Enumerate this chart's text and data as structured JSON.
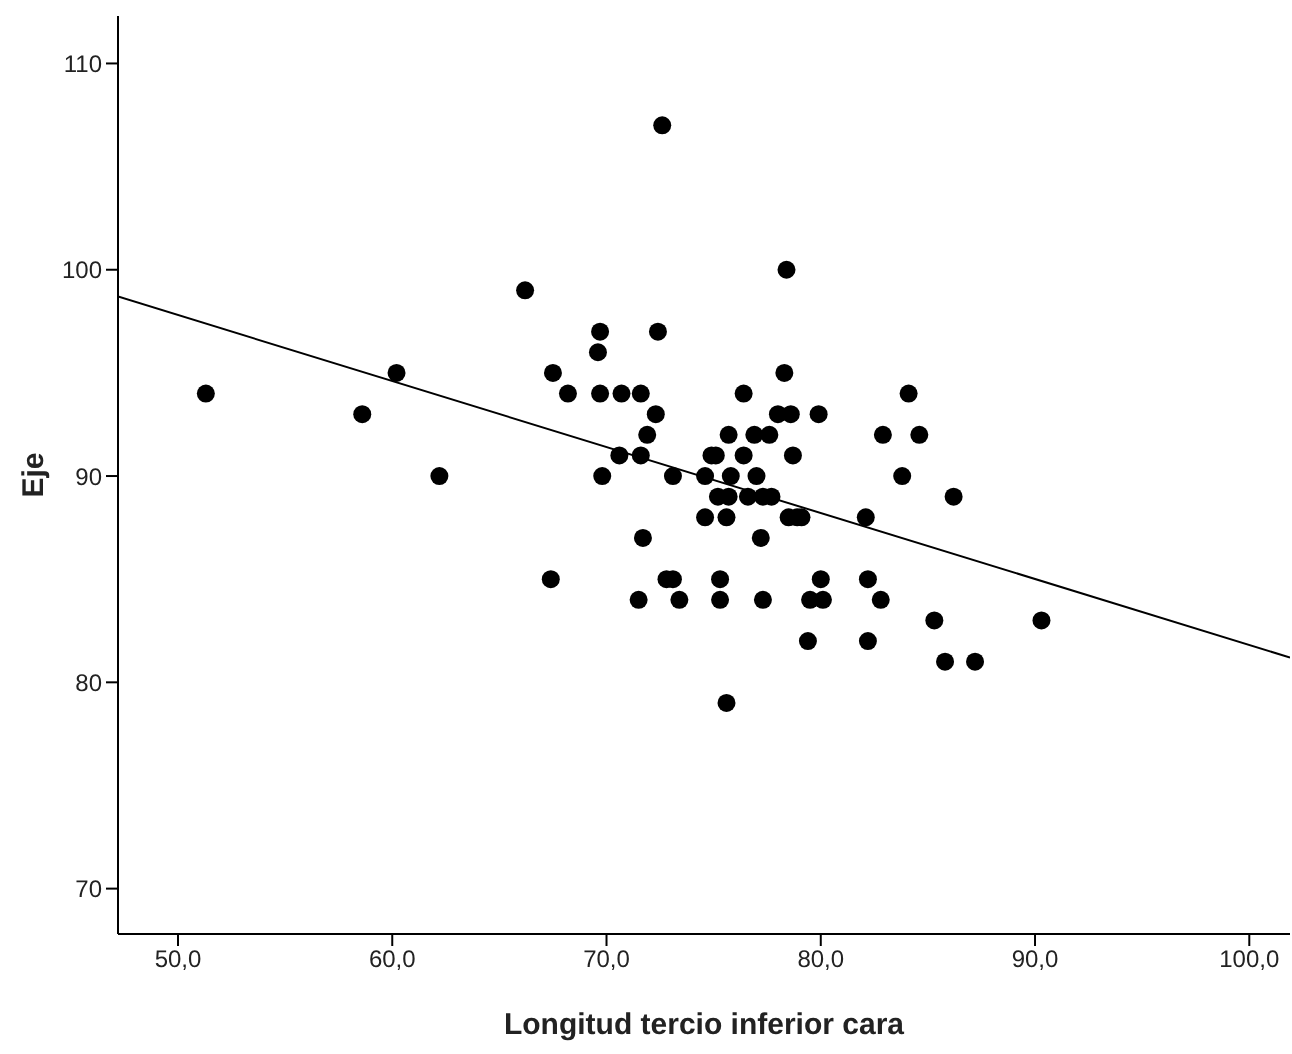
{
  "chart_data": {
    "type": "scatter",
    "xlabel": "Longitud tercio inferior cara",
    "ylabel": "Eje",
    "xlim": [
      47.2,
      101.9
    ],
    "ylim": [
      67.8,
      112.3
    ],
    "xticks": [
      {
        "value": 50,
        "label": "50,0"
      },
      {
        "value": 60,
        "label": "60,0"
      },
      {
        "value": 70,
        "label": "70,0"
      },
      {
        "value": 80,
        "label": "80,0"
      },
      {
        "value": 90,
        "label": "90,0"
      },
      {
        "value": 100,
        "label": "100,0"
      }
    ],
    "yticks": [
      70,
      80,
      90,
      100,
      110
    ],
    "grid": false,
    "legend": false,
    "series": [
      {
        "marker": "circle",
        "color": "#000000",
        "x": [
          51.3,
          58.6,
          60.2,
          62.2,
          66.2,
          67.4,
          67.5,
          68.2,
          69.6,
          69.7,
          69.7,
          69.8,
          70.7,
          70.6,
          71.5,
          71.6,
          71.6,
          71.7,
          71.9,
          72.3,
          72.4,
          72.6,
          72.8,
          73.1,
          73.1,
          73.4,
          74.6,
          74.6,
          74.9,
          75.1,
          75.2,
          75.3,
          75.3,
          75.6,
          75.6,
          75.7,
          75.7,
          75.8,
          76.4,
          76.4,
          76.6,
          76.9,
          77.0,
          77.2,
          77.3,
          77.3,
          77.6,
          77.7,
          78.0,
          78.3,
          78.4,
          78.5,
          78.6,
          78.7,
          78.9,
          79.1,
          79.4,
          79.5,
          79.9,
          80.0,
          80.1,
          82.1,
          82.2,
          82.2,
          82.8,
          82.9,
          83.8,
          84.1,
          84.6,
          85.3,
          85.8,
          86.2,
          87.2,
          90.3
        ],
        "values": [
          94,
          93,
          95,
          90,
          99,
          85,
          95,
          94,
          96,
          97,
          94,
          90,
          94,
          91,
          84,
          94,
          91,
          87,
          92,
          93,
          97,
          107,
          85,
          85,
          90,
          84,
          90,
          88,
          91,
          91,
          89,
          85,
          84,
          88,
          79,
          92,
          89,
          90,
          94,
          91,
          89,
          92,
          90,
          87,
          89,
          84,
          92,
          89,
          93,
          95,
          100,
          88,
          93,
          91,
          88,
          88,
          82,
          84,
          93,
          85,
          84,
          88,
          85,
          82,
          84,
          92,
          90,
          94,
          92,
          83,
          81,
          89,
          81,
          83
        ]
      },
      {
        "type": "line",
        "marker": "none",
        "color": "#000000",
        "x": [
          47.2,
          101.9
        ],
        "values": [
          98.7,
          81.2
        ]
      }
    ]
  }
}
